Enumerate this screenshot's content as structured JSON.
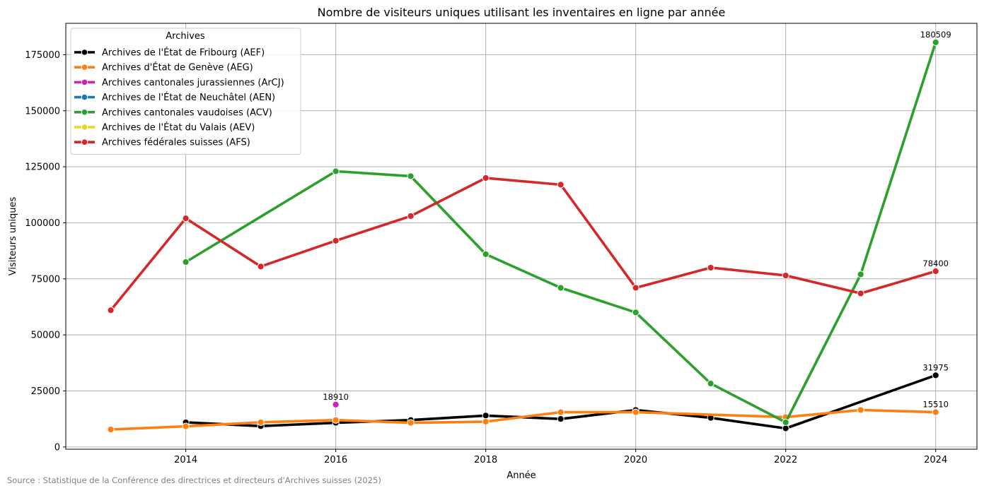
{
  "chart_data": {
    "type": "line",
    "title": "Nombre de visiteurs uniques utilisant les inventaires en ligne par année",
    "xlabel": "Année",
    "ylabel": "Visiteurs uniques",
    "xlim": [
      2012.4,
      2024.55
    ],
    "ylim": [
      -1000,
      189000
    ],
    "xticks": [
      2014,
      2016,
      2018,
      2020,
      2022,
      2024
    ],
    "yticks": [
      0,
      25000,
      50000,
      75000,
      100000,
      125000,
      150000,
      175000
    ],
    "grid": true,
    "legend": {
      "title": "Archives",
      "placement": "top-left"
    },
    "series": [
      {
        "name": "Archives de l'État de Fribourg (AEF)",
        "color": "#000000",
        "points": [
          [
            2014,
            11000
          ],
          [
            2015,
            9300
          ],
          [
            2016,
            10800
          ],
          [
            2017,
            12000
          ],
          [
            2018,
            14000
          ],
          [
            2019,
            12500
          ],
          [
            2020,
            16500
          ],
          [
            2021,
            13000
          ],
          [
            2022,
            8300
          ],
          [
            2024,
            31975
          ]
        ]
      },
      {
        "name": "Archives d'État de Genève (AEG)",
        "color": "#ff7f0e",
        "points": [
          [
            2013,
            7800
          ],
          [
            2014,
            9200
          ],
          [
            2015,
            11000
          ],
          [
            2016,
            12000
          ],
          [
            2017,
            10800
          ],
          [
            2018,
            11300
          ],
          [
            2019,
            15500
          ],
          [
            2020,
            15500
          ],
          [
            2022,
            13300
          ],
          [
            2023,
            16500
          ],
          [
            2024,
            15510
          ]
        ]
      },
      {
        "name": "Archives cantonales jurassiennes (ArCJ)",
        "color": "#cc22bb",
        "points": [
          [
            2016,
            18910
          ]
        ]
      },
      {
        "name": "Archives de l'État de Neuchâtel (AEN)",
        "color": "#1f77b4",
        "points": []
      },
      {
        "name": "Archives cantonales vaudoises (ACV)",
        "color": "#2ca02c",
        "points": [
          [
            2014,
            82500
          ],
          [
            2016,
            123000
          ],
          [
            2017,
            120800
          ],
          [
            2018,
            86000
          ],
          [
            2019,
            71000
          ],
          [
            2020,
            60000
          ],
          [
            2021,
            28300
          ],
          [
            2022,
            11000
          ],
          [
            2023,
            77000
          ],
          [
            2024,
            180509
          ]
        ]
      },
      {
        "name": "Archives de l'État du Valais (AEV)",
        "color": "#e6d629",
        "points": []
      },
      {
        "name": "Archives fédérales suisses (AFS)",
        "color": "#d62728",
        "points": [
          [
            2013,
            61000
          ],
          [
            2014,
            102000
          ],
          [
            2015,
            80500
          ],
          [
            2016,
            92000
          ],
          [
            2017,
            103000
          ],
          [
            2018,
            120000
          ],
          [
            2019,
            117000
          ],
          [
            2020,
            71000
          ],
          [
            2021,
            80000
          ],
          [
            2022,
            76500
          ],
          [
            2023,
            68500
          ],
          [
            2024,
            78400
          ]
        ]
      }
    ],
    "annotations": [
      {
        "text": "180509",
        "x": 2024,
        "y": 180509
      },
      {
        "text": "78400",
        "x": 2024,
        "y": 78400
      },
      {
        "text": "31975",
        "x": 2024,
        "y": 31975
      },
      {
        "text": "15510",
        "x": 2024,
        "y": 15510
      },
      {
        "text": "18910",
        "x": 2016,
        "y": 18910
      }
    ]
  },
  "source_note": "Source : Statistique de la Conférence des directrices et directeurs d'Archives suisses (2025)"
}
